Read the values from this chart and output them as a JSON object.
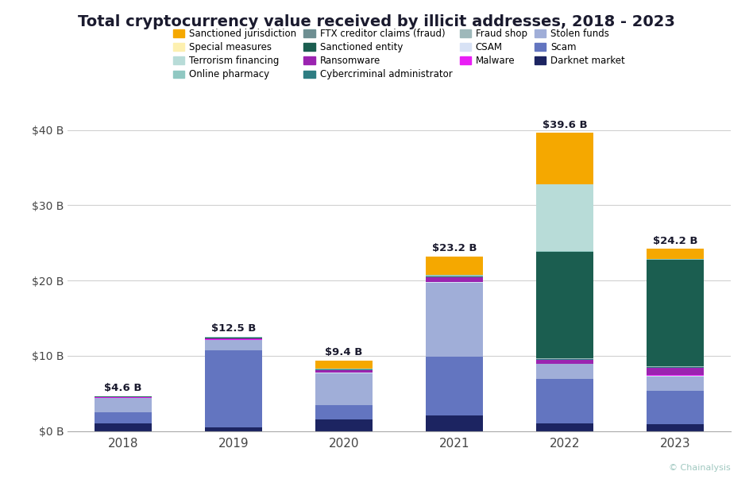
{
  "title": "Total cryptocurrency value received by illicit addresses, 2018 - 2023",
  "years": [
    "2018",
    "2019",
    "2020",
    "2021",
    "2022",
    "2023"
  ],
  "totals": [
    "$4.6 B",
    "$12.5 B",
    "$9.4 B",
    "$23.2 B",
    "$39.6 B",
    "$24.2 B"
  ],
  "total_vals": [
    4.6,
    12.5,
    9.4,
    23.2,
    39.6,
    24.2
  ],
  "background_color": "#ffffff",
  "footer_color": "#2e6b5e",
  "categories": [
    "Darknet market",
    "Scam",
    "Stolen funds",
    "CSAM",
    "Malware",
    "Ransomware",
    "Cybercriminal administrator",
    "Fraud shop",
    "Sanctioned entity",
    "FTX creditor claims (fraud)",
    "Online pharmacy",
    "Terrorism financing",
    "Special measures",
    "Sanctioned jurisdiction"
  ],
  "colors": [
    "#1c2461",
    "#6375c0",
    "#a0aed8",
    "#d8e2f5",
    "#e91ef5",
    "#9b24b0",
    "#2e7d82",
    "#9eb8ba",
    "#1b5e50",
    "#6e8f92",
    "#90c8c2",
    "#b8dcd8",
    "#fdf0b0",
    "#f5a800"
  ],
  "legend_order": [
    "Sanctioned jurisdiction",
    "Special measures",
    "Terrorism financing",
    "Online pharmacy",
    "FTX creditor claims (fraud)",
    "Sanctioned entity",
    "Ransomware",
    "Cybercriminal administrator",
    "Fraud shop",
    "CSAM",
    "Malware",
    "Stolen funds",
    "Scam",
    "Darknet market"
  ],
  "segments": {
    "2018": {
      "Darknet market": 1.0,
      "Scam": 1.5,
      "Stolen funds": 1.9,
      "CSAM": 0.05,
      "Malware": 0.02,
      "Ransomware": 0.03,
      "Cybercriminal administrator": 0.02,
      "Fraud shop": 0.02,
      "Sanctioned entity": 0.02,
      "FTX creditor claims (fraud)": 0.0,
      "Online pharmacy": 0.04,
      "Terrorism financing": 0.0,
      "Special measures": 0.0,
      "Sanctioned jurisdiction": 0.0
    },
    "2019": {
      "Darknet market": 0.5,
      "Scam": 10.2,
      "Stolen funds": 1.4,
      "CSAM": 0.05,
      "Malware": 0.02,
      "Ransomware": 0.1,
      "Cybercriminal administrator": 0.02,
      "Fraud shop": 0.05,
      "Sanctioned entity": 0.1,
      "FTX creditor claims (fraud)": 0.0,
      "Online pharmacy": 0.06,
      "Terrorism financing": 0.0,
      "Special measures": 0.0,
      "Sanctioned jurisdiction": 0.0
    },
    "2020": {
      "Darknet market": 1.5,
      "Scam": 2.0,
      "Stolen funds": 4.2,
      "CSAM": 0.1,
      "Malware": 0.02,
      "Ransomware": 0.3,
      "Cybercriminal administrator": 0.04,
      "Fraud shop": 0.04,
      "Sanctioned entity": 0.0,
      "FTX creditor claims (fraud)": 0.0,
      "Online pharmacy": 0.1,
      "Terrorism financing": 0.0,
      "Special measures": 0.0,
      "Sanctioned jurisdiction": 1.1
    },
    "2021": {
      "Darknet market": 2.1,
      "Scam": 7.8,
      "Stolen funds": 9.8,
      "CSAM": 0.1,
      "Malware": 0.02,
      "Ransomware": 0.6,
      "Cybercriminal administrator": 0.1,
      "Fraud shop": 0.1,
      "Sanctioned entity": 0.1,
      "FTX creditor claims (fraud)": 0.0,
      "Online pharmacy": 0.1,
      "Terrorism financing": 0.0,
      "Special measures": 0.0,
      "Sanctioned jurisdiction": 2.4
    },
    "2022": {
      "Darknet market": 1.0,
      "Scam": 5.9,
      "Stolen funds": 2.0,
      "CSAM": 0.05,
      "Malware": 0.02,
      "Ransomware": 0.5,
      "Cybercriminal administrator": 0.1,
      "Fraud shop": 0.1,
      "Sanctioned entity": 14.2,
      "FTX creditor claims (fraud)": 0.0,
      "Online pharmacy": 0.1,
      "Terrorism financing": 8.8,
      "Special measures": 0.0,
      "Sanctioned jurisdiction": 6.83
    },
    "2023": {
      "Darknet market": 0.9,
      "Scam": 4.4,
      "Stolen funds": 2.0,
      "CSAM": 0.1,
      "Malware": 0.02,
      "Ransomware": 1.0,
      "Cybercriminal administrator": 0.1,
      "Fraud shop": 0.1,
      "Sanctioned entity": 14.1,
      "FTX creditor claims (fraud)": 0.0,
      "Online pharmacy": 0.1,
      "Terrorism financing": 0.0,
      "Special measures": 0.0,
      "Sanctioned jurisdiction": 1.38
    }
  },
  "ylim": [
    0,
    42
  ],
  "yticks": [
    0,
    10,
    20,
    30,
    40
  ],
  "ytick_labels": [
    "$0 B",
    "$10 B",
    "$20 B",
    "$30 B",
    "$40 B"
  ]
}
